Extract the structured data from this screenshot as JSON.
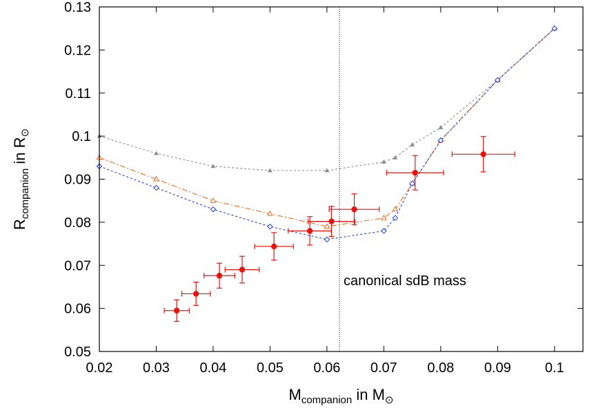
{
  "chart_data": {
    "type": "scatter",
    "title": "",
    "xlabel": {
      "main": "M",
      "sub": "companion",
      "rest": " in M",
      "symbol": "⊙"
    },
    "ylabel": {
      "main": "R",
      "sub": "companion",
      "rest": " in R",
      "symbol": "⊙"
    },
    "xlim": [
      0.02,
      0.105
    ],
    "ylim": [
      0.05,
      0.13
    ],
    "x_ticks": [
      0.02,
      0.03,
      0.04,
      0.05,
      0.06,
      0.07,
      0.08,
      0.09,
      0.1
    ],
    "x_tick_labels": [
      "0.02",
      "0.03",
      "0.04",
      "0.05",
      "0.06",
      "0.07",
      "0.08",
      "0.09",
      "0.1"
    ],
    "y_ticks": [
      0.05,
      0.06,
      0.07,
      0.08,
      0.09,
      0.1,
      0.11,
      0.12,
      0.13
    ],
    "y_tick_labels": [
      "0.05",
      "0.06",
      "0.07",
      "0.08",
      "0.09",
      "0.1",
      "0.11",
      "0.12",
      "0.13"
    ],
    "grid": false,
    "annotations": [
      {
        "text": "canonical sdB mass",
        "x": 0.0622,
        "y": 0.0665
      }
    ],
    "vline": {
      "x": 0.0622,
      "style": "dotted",
      "color": "#000000"
    },
    "series": [
      {
        "kind": "line",
        "marker": "triangle-filled",
        "color": "#8c8c8c",
        "dash": "3,3",
        "x": [
          0.02,
          0.03,
          0.04,
          0.05,
          0.06,
          0.07,
          0.072,
          0.075,
          0.08,
          0.09,
          0.1
        ],
        "y": [
          0.1,
          0.096,
          0.093,
          0.092,
          0.092,
          0.094,
          0.095,
          0.098,
          0.102,
          0.113,
          0.125
        ]
      },
      {
        "kind": "line",
        "marker": "triangle-open",
        "color": "#ee6a1e",
        "dash": "8,3,2,3",
        "x": [
          0.02,
          0.03,
          0.04,
          0.05,
          0.06,
          0.07,
          0.072,
          0.075,
          0.08,
          0.09,
          0.1
        ],
        "y": [
          0.095,
          0.09,
          0.085,
          0.082,
          0.079,
          0.081,
          0.083,
          0.089,
          0.099,
          0.113,
          0.125
        ]
      },
      {
        "kind": "line",
        "marker": "diamond-open",
        "color": "#1f3fd6",
        "dash": "3,3",
        "x": [
          0.02,
          0.03,
          0.04,
          0.05,
          0.06,
          0.07,
          0.072,
          0.075,
          0.08,
          0.09,
          0.1
        ],
        "y": [
          0.093,
          0.088,
          0.083,
          0.079,
          0.076,
          0.078,
          0.081,
          0.089,
          0.099,
          0.113,
          0.125
        ]
      },
      {
        "kind": "errorbar",
        "marker": "circle-filled",
        "color": "#e8120c",
        "points": [
          {
            "x": 0.0336,
            "y": 0.0595,
            "xerr": 0.0022,
            "yerr": 0.0025
          },
          {
            "x": 0.037,
            "y": 0.0634,
            "xerr": 0.0025,
            "yerr": 0.0027
          },
          {
            "x": 0.0411,
            "y": 0.0676,
            "xerr": 0.0027,
            "yerr": 0.0029
          },
          {
            "x": 0.0451,
            "y": 0.069,
            "xerr": 0.003,
            "yerr": 0.0031
          },
          {
            "x": 0.0507,
            "y": 0.0744,
            "xerr": 0.0034,
            "yerr": 0.0032
          },
          {
            "x": 0.057,
            "y": 0.078,
            "xerr": 0.0038,
            "yerr": 0.0033
          },
          {
            "x": 0.0608,
            "y": 0.0802,
            "xerr": 0.0041,
            "yerr": 0.0035
          },
          {
            "x": 0.0648,
            "y": 0.083,
            "xerr": 0.0044,
            "yerr": 0.0036
          },
          {
            "x": 0.0755,
            "y": 0.0915,
            "xerr": 0.005,
            "yerr": 0.004
          },
          {
            "x": 0.0875,
            "y": 0.0958,
            "xerr": 0.0055,
            "yerr": 0.0041
          }
        ]
      }
    ]
  }
}
